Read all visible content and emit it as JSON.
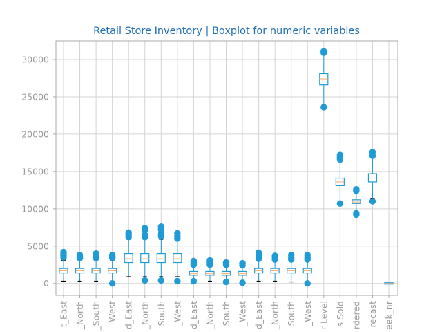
{
  "chart_data": {
    "type": "boxplot",
    "title": "Retail Store Inventory | Boxplot for numeric variables",
    "xlabel": "",
    "ylabel": "",
    "ylim": [
      -1600,
      32500
    ],
    "y_ticks": [
      0,
      5000,
      10000,
      15000,
      20000,
      25000,
      30000
    ],
    "grid": true,
    "colors": {
      "title": "#1f6fb4",
      "box": "#1f9bd6",
      "median": "#f0a868",
      "flier": "#1f9bd6",
      "whisker_cap": "#000000",
      "grid": "#d3d3d3",
      "axis": "#a9a9a9",
      "tick_text": "#9a9a9a"
    },
    "categories": [
      "t_East",
      "_North",
      "_South",
      "_West",
      "d_East",
      "_North",
      "_South",
      "_West",
      "d_East",
      "_North",
      "_South",
      "_West",
      "d_East",
      "_North",
      "_South",
      "_West",
      "r Level",
      "s Sold",
      "rdered",
      "recast",
      "eek_nr"
    ],
    "boxes": [
      {
        "q1": 1400,
        "median": 1700,
        "q3": 2000,
        "whislo": 300,
        "whishi": 3100,
        "fliers": [
          3500,
          3700,
          4000,
          4200
        ]
      },
      {
        "q1": 1400,
        "median": 1700,
        "q3": 2000,
        "whislo": 300,
        "whishi": 3100,
        "fliers": [
          3400,
          3600,
          3800
        ]
      },
      {
        "q1": 1400,
        "median": 1700,
        "q3": 2000,
        "whislo": 300,
        "whishi": 3100,
        "fliers": [
          3400,
          3600,
          3800,
          4000
        ]
      },
      {
        "q1": 1400,
        "median": 1700,
        "q3": 2000,
        "whislo": 300,
        "whishi": 3100,
        "fliers": [
          0,
          3400,
          3600,
          3800
        ]
      },
      {
        "q1": 2800,
        "median": 3300,
        "q3": 4000,
        "whislo": 900,
        "whishi": 5900,
        "fliers": [
          6200,
          6500,
          6800
        ]
      },
      {
        "q1": 2800,
        "median": 3300,
        "q3": 4000,
        "whislo": 900,
        "whishi": 5900,
        "fliers": [
          400,
          6200,
          6500,
          7100,
          7400
        ]
      },
      {
        "q1": 2800,
        "median": 3300,
        "q3": 4000,
        "whislo": 900,
        "whishi": 5900,
        "fliers": [
          400,
          6300,
          6600,
          7200,
          7600
        ]
      },
      {
        "q1": 2800,
        "median": 3300,
        "q3": 4000,
        "whislo": 900,
        "whishi": 5900,
        "fliers": [
          300,
          6000,
          6300,
          6700
        ]
      },
      {
        "q1": 1100,
        "median": 1300,
        "q3": 1600,
        "whislo": 300,
        "whishi": 2300,
        "fliers": [
          300,
          2500,
          2800,
          3000
        ]
      },
      {
        "q1": 1100,
        "median": 1300,
        "q3": 1600,
        "whislo": 300,
        "whishi": 2300,
        "fliers": [
          2500,
          2800,
          3100
        ]
      },
      {
        "q1": 1100,
        "median": 1300,
        "q3": 1600,
        "whislo": 300,
        "whishi": 2300,
        "fliers": [
          200,
          2500,
          2800
        ]
      },
      {
        "q1": 1100,
        "median": 1300,
        "q3": 1600,
        "whislo": 300,
        "whishi": 2300,
        "fliers": [
          100,
          2400,
          2700
        ]
      },
      {
        "q1": 1400,
        "median": 1700,
        "q3": 2000,
        "whislo": 300,
        "whishi": 3100,
        "fliers": [
          3300,
          3600,
          3900,
          4100
        ]
      },
      {
        "q1": 1400,
        "median": 1700,
        "q3": 2000,
        "whislo": 300,
        "whishi": 3100,
        "fliers": [
          3200,
          3500,
          3700
        ]
      },
      {
        "q1": 1400,
        "median": 1700,
        "q3": 2000,
        "whislo": 200,
        "whishi": 3100,
        "fliers": [
          3200,
          3500,
          3800
        ]
      },
      {
        "q1": 1400,
        "median": 1700,
        "q3": 2000,
        "whislo": 200,
        "whishi": 3100,
        "fliers": [
          0,
          3200,
          3500,
          3800
        ]
      },
      {
        "q1": 26600,
        "median": 27400,
        "q3": 28100,
        "whislo": 24000,
        "whishi": 30800,
        "fliers": [
          23600,
          30900,
          31100
        ]
      },
      {
        "q1": 13100,
        "median": 13600,
        "q3": 14100,
        "whislo": 11000,
        "whishi": 16300,
        "fliers": [
          10700,
          16600,
          16900,
          17200
        ]
      },
      {
        "q1": 10700,
        "median": 10900,
        "q3": 11200,
        "whislo": 9700,
        "whishi": 12200,
        "fliers": [
          9200,
          9400,
          12400,
          12600
        ]
      },
      {
        "q1": 13600,
        "median": 14100,
        "q3": 14700,
        "whislo": 11400,
        "whishi": 16800,
        "fliers": [
          11000,
          17100,
          17600
        ]
      },
      {
        "q1": -10,
        "median": 0,
        "q3": 10,
        "whislo": -20,
        "whishi": 20,
        "fliers": []
      }
    ]
  }
}
